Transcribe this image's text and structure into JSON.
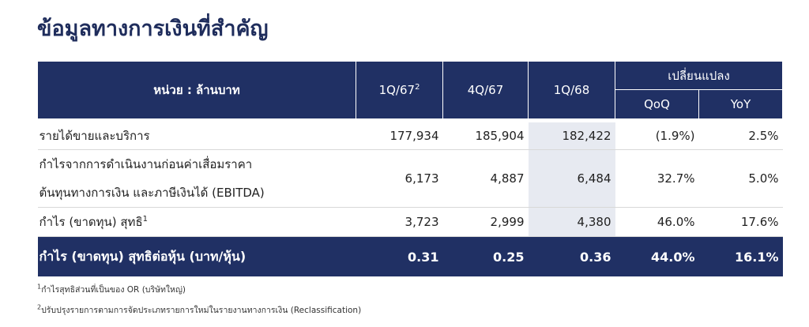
{
  "title": "ข้อมูลทางการเงินที่สำคัญ",
  "table": {
    "header": {
      "unit": "หน่วย : ล้านบาท",
      "columns": [
        {
          "label": "1Q/67",
          "note": "2"
        },
        {
          "label": "4Q/67"
        },
        {
          "label": "1Q/68"
        }
      ],
      "change": "เปลี่ยนแปลง",
      "change_columns": [
        "QoQ",
        "YoY"
      ]
    },
    "rows": [
      {
        "label": [
          "รายได้ขายและบริการ"
        ],
        "cells": [
          "177,934",
          "185,904",
          "182,422",
          "(1.9%)",
          "2.5%"
        ]
      },
      {
        "label": [
          "กำไรจากการดำเนินงานก่อนค่าเสื่อมราคา",
          "ต้นทุนทางการเงิน และภาษีเงินได้ (EBITDA)"
        ],
        "cells": [
          "6,173",
          "4,887",
          "6,484",
          "32.7%",
          "5.0%"
        ]
      },
      {
        "label": [
          "กำไร (ขาดทุน) สุทธิ"
        ],
        "note": "1",
        "cells": [
          "3,723",
          "2,999",
          "4,380",
          "46.0%",
          "17.6%"
        ]
      },
      {
        "label": [
          "กำไร (ขาดทุน) สุทธิต่อหุ้น (บาท/หุ้น)"
        ],
        "cells": [
          "0.31",
          "0.25",
          "0.36",
          "44.0%",
          "16.1%"
        ]
      }
    ]
  },
  "footnotes": [
    {
      "mark": "1",
      "text": "กำไรสุทธิส่วนที่เป็นของ OR (บริษัทใหญ่)"
    },
    {
      "mark": "2",
      "text": "ปรับปรุงรายการตามการจัดประเภทรายการใหม่ในรายงานทางการเงิน (Reclassification)"
    }
  ]
}
